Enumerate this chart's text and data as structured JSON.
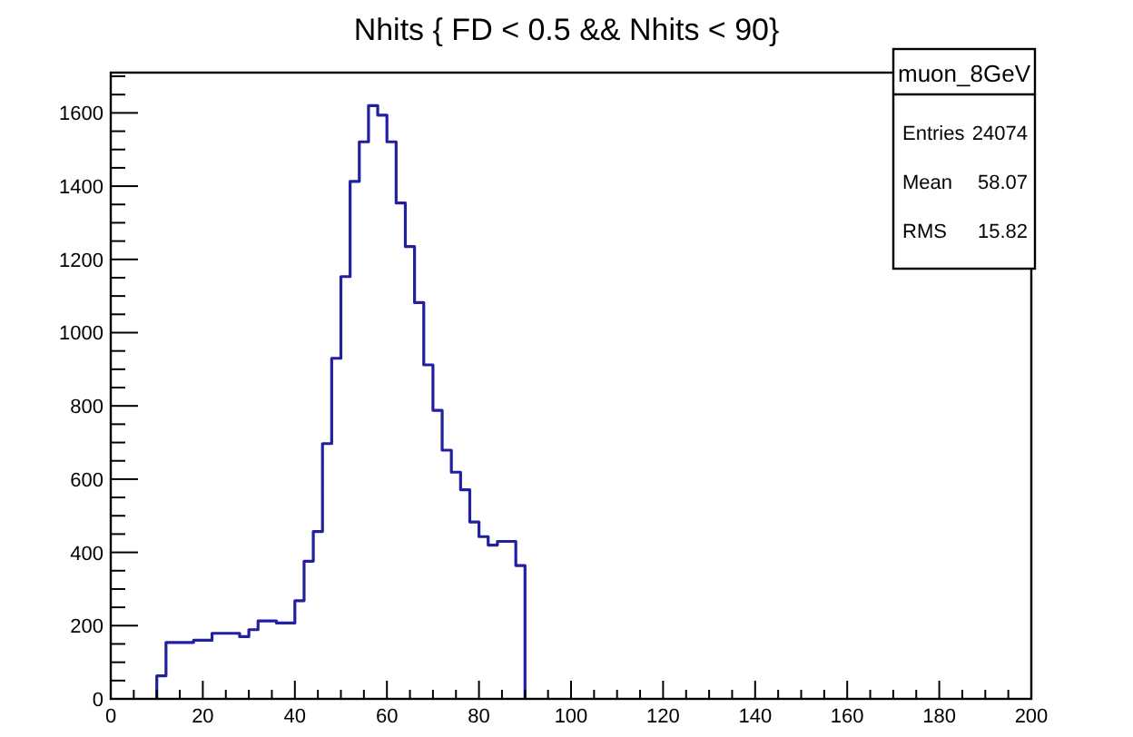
{
  "chart_data": {
    "type": "histogram",
    "title": "Nhits { FD < 0.5 && Nhits < 90}",
    "bins": [
      10,
      12,
      14,
      16,
      18,
      20,
      22,
      24,
      26,
      28,
      30,
      32,
      34,
      36,
      38,
      40,
      42,
      44,
      46,
      48,
      50,
      52,
      54,
      56,
      58,
      60,
      62,
      64,
      66,
      68,
      70,
      72,
      74,
      76,
      78,
      80,
      82,
      84,
      86,
      88,
      90
    ],
    "values": [
      63,
      154,
      154,
      154,
      160,
      160,
      179,
      179,
      179,
      170,
      189,
      213,
      213,
      207,
      207,
      268,
      376,
      457,
      697,
      930,
      1153,
      1413,
      1521,
      1620,
      1594,
      1521,
      1354,
      1235,
      1082,
      912,
      788,
      679,
      619,
      571,
      483,
      443,
      420,
      430,
      430,
      364
    ],
    "color": "#2020a0",
    "xlim": [
      0,
      200
    ],
    "xticks": [
      0,
      {
        "value": 5,
        "label": null
      },
      {
        "value": 10,
        "label": null
      },
      {
        "value": 15,
        "label": null
      },
      20,
      {
        "value": 25,
        "label": null
      },
      {
        "value": 30,
        "label": null
      },
      {
        "value": 35,
        "label": null
      },
      40,
      {
        "value": 45,
        "label": null
      },
      {
        "value": 50,
        "label": null
      },
      {
        "value": 55,
        "label": null
      },
      60,
      {
        "value": 65,
        "label": null
      },
      {
        "value": 70,
        "label": null
      },
      {
        "value": 75,
        "label": null
      },
      80,
      {
        "value": 85,
        "label": null
      },
      {
        "value": 90,
        "label": null
      },
      {
        "value": 95,
        "label": null
      },
      100,
      {
        "value": 105,
        "label": null
      },
      {
        "value": 110,
        "label": null
      },
      {
        "value": 115,
        "label": null
      },
      120,
      {
        "value": 125,
        "label": null
      },
      {
        "value": 130,
        "label": null
      },
      {
        "value": 135,
        "label": null
      },
      140,
      {
        "value": 145,
        "label": null
      },
      {
        "value": 150,
        "label": null
      },
      {
        "value": 155,
        "label": null
      },
      160,
      {
        "value": 165,
        "label": null
      },
      {
        "value": 170,
        "label": null
      },
      {
        "value": 175,
        "label": null
      },
      180,
      {
        "value": 185,
        "label": null
      },
      {
        "value": 190,
        "label": null
      },
      {
        "value": 195,
        "label": null
      },
      200
    ],
    "ylim": [
      0,
      1710
    ],
    "yticks": [
      0,
      {
        "value": 50,
        "label": null
      },
      {
        "value": 100,
        "label": null
      },
      {
        "value": 150,
        "label": null
      },
      200,
      {
        "value": 250,
        "label": null
      },
      {
        "value": 300,
        "label": null
      },
      {
        "value": 350,
        "label": null
      },
      400,
      {
        "value": 450,
        "label": null
      },
      {
        "value": 500,
        "label": null
      },
      {
        "value": 550,
        "label": null
      },
      600,
      {
        "value": 650,
        "label": null
      },
      {
        "value": 700,
        "label": null
      },
      {
        "value": 750,
        "label": null
      },
      800,
      {
        "value": 850,
        "label": null
      },
      {
        "value": 900,
        "label": null
      },
      {
        "value": 950,
        "label": null
      },
      1000,
      {
        "value": 1050,
        "label": null
      },
      {
        "value": 1100,
        "label": null
      },
      {
        "value": 1150,
        "label": null
      },
      1200,
      {
        "value": 1250,
        "label": null
      },
      {
        "value": 1300,
        "label": null
      },
      {
        "value": 1350,
        "label": null
      },
      1400,
      {
        "value": 1450,
        "label": null
      },
      {
        "value": 1500,
        "label": null
      },
      {
        "value": 1550,
        "label": null
      },
      1600,
      {
        "value": 1650,
        "label": null
      },
      {
        "value": 1700,
        "label": null
      }
    ],
    "annotations": [
      "muon_8GeV",
      "Entries",
      "24074",
      "Mean",
      "58.07",
      "RMS",
      "15.82"
    ]
  }
}
